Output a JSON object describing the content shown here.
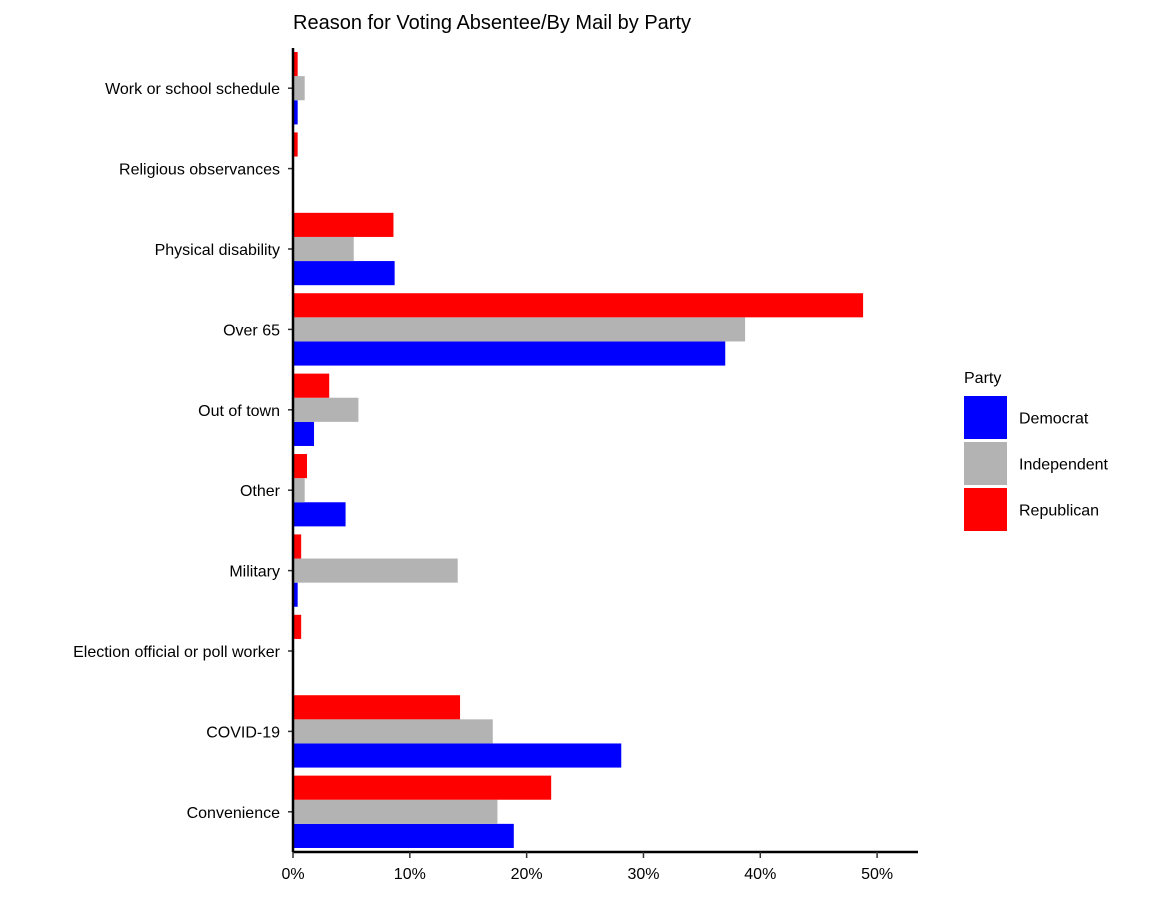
{
  "chart_data": {
    "type": "bar",
    "orientation": "horizontal",
    "title": "Reason for Voting Absentee/By Mail by Party",
    "xlabel": "",
    "ylabel": "",
    "xlim": [
      0,
      0.535
    ],
    "x_ticks": [
      0,
      0.1,
      0.2,
      0.3,
      0.4,
      0.5
    ],
    "x_tick_labels": [
      "0%",
      "10%",
      "20%",
      "30%",
      "40%",
      "50%"
    ],
    "categories": [
      "Convenience",
      "COVID-19",
      "Election official or poll worker",
      "Military",
      "Other",
      "Out of town",
      "Over 65",
      "Physical disability",
      "Religious observances",
      "Work or school schedule"
    ],
    "series": [
      {
        "name": "Democrat",
        "color": "#0000ff",
        "values": [
          0.189,
          0.281,
          0.0,
          0.004,
          0.045,
          0.018,
          0.37,
          0.087,
          0.0,
          0.004
        ]
      },
      {
        "name": "Independent",
        "color": "#b3b3b3",
        "values": [
          0.175,
          0.171,
          0.0,
          0.141,
          0.01,
          0.056,
          0.387,
          0.052,
          0.0,
          0.01
        ]
      },
      {
        "name": "Republican",
        "color": "#ff0000",
        "values": [
          0.221,
          0.143,
          0.007,
          0.007,
          0.012,
          0.031,
          0.488,
          0.086,
          0.004,
          0.004
        ]
      }
    ],
    "grid": false,
    "legend": {
      "title": "Party",
      "placement": "right",
      "entries": [
        "Democrat",
        "Independent",
        "Republican"
      ]
    }
  }
}
